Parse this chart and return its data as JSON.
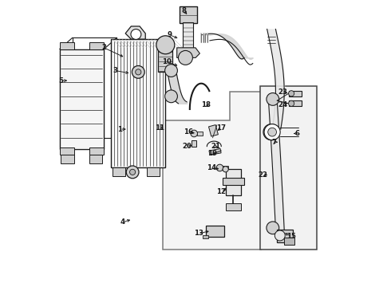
{
  "bg_color": "#ffffff",
  "line_color": "#1a1a1a",
  "fill_light": "#e8e8e8",
  "fill_mid": "#d0d0d0",
  "fill_dark": "#b8b8b8",
  "box_fill": "#f0f0f0",
  "xlim": [
    0,
    10
  ],
  "ylim": [
    0,
    10
  ],
  "label_positions": {
    "1": [
      2.35,
      5.5,
      2.65,
      5.5
    ],
    "2": [
      1.8,
      8.35,
      2.55,
      8.0
    ],
    "3": [
      2.2,
      7.55,
      2.75,
      7.45
    ],
    "4": [
      2.45,
      2.25,
      2.8,
      2.35
    ],
    "5": [
      0.3,
      7.2,
      0.6,
      7.2
    ],
    "6": [
      8.55,
      5.35,
      8.35,
      5.35
    ],
    "7": [
      7.75,
      5.05,
      7.95,
      5.05
    ],
    "8": [
      4.6,
      9.65,
      4.75,
      9.45
    ],
    "9": [
      4.1,
      8.8,
      4.45,
      8.65
    ],
    "10": [
      4.0,
      7.85,
      4.45,
      7.7
    ],
    "11": [
      3.75,
      5.55,
      3.95,
      5.55
    ],
    "12": [
      5.9,
      3.3,
      6.15,
      3.5
    ],
    "13": [
      5.1,
      1.85,
      5.55,
      1.95
    ],
    "14": [
      5.55,
      4.15,
      5.9,
      4.1
    ],
    "15": [
      8.35,
      1.75,
      8.05,
      1.9
    ],
    "16": [
      4.75,
      5.4,
      5.05,
      5.35
    ],
    "17": [
      5.9,
      5.55,
      5.7,
      5.4
    ],
    "18": [
      5.35,
      6.35,
      5.55,
      6.25
    ],
    "19": [
      5.6,
      4.65,
      5.8,
      4.7
    ],
    "20": [
      4.7,
      4.9,
      4.95,
      4.95
    ],
    "21": [
      5.7,
      4.9,
      5.85,
      4.85
    ],
    "22": [
      7.35,
      3.9,
      7.6,
      3.9
    ],
    "23": [
      8.05,
      6.8,
      8.3,
      6.75
    ],
    "24": [
      8.05,
      6.35,
      8.3,
      6.45
    ]
  }
}
